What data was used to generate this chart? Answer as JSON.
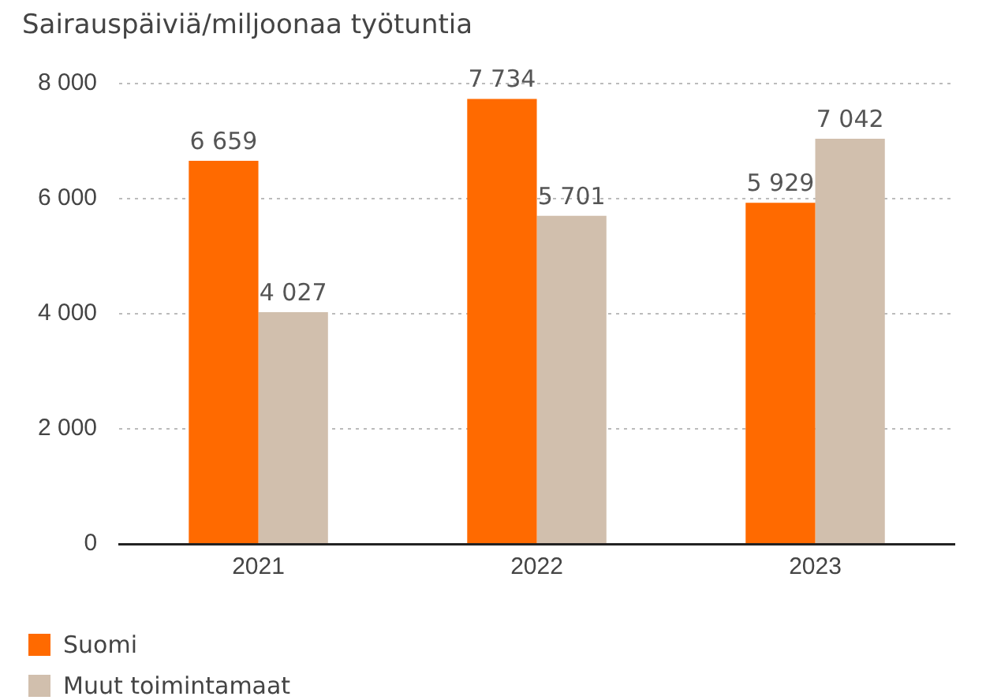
{
  "chart_data": {
    "type": "bar",
    "title": "Sairauspäiviä/miljoonaa työtuntia",
    "categories": [
      "2021",
      "2022",
      "2023"
    ],
    "series": [
      {
        "name": "Suomi",
        "color": "#ff6a00",
        "values": [
          6659,
          7734,
          5929
        ],
        "value_labels": [
          "6 659",
          "7 734",
          "5 929"
        ]
      },
      {
        "name": "Muut toimintamaat",
        "color": "#d1bfad",
        "values": [
          4027,
          5701,
          7042
        ],
        "value_labels": [
          "4 027",
          "5 701",
          "7 042"
        ]
      }
    ],
    "ylim": [
      0,
      8000
    ],
    "yticks": [
      {
        "value": 0,
        "label": "0"
      },
      {
        "value": 2000,
        "label": "2 000"
      },
      {
        "value": 4000,
        "label": "4 000"
      },
      {
        "value": 6000,
        "label": "6 000"
      },
      {
        "value": 8000,
        "label": "8 000"
      }
    ],
    "grid": "y",
    "legend": "bottom left"
  }
}
